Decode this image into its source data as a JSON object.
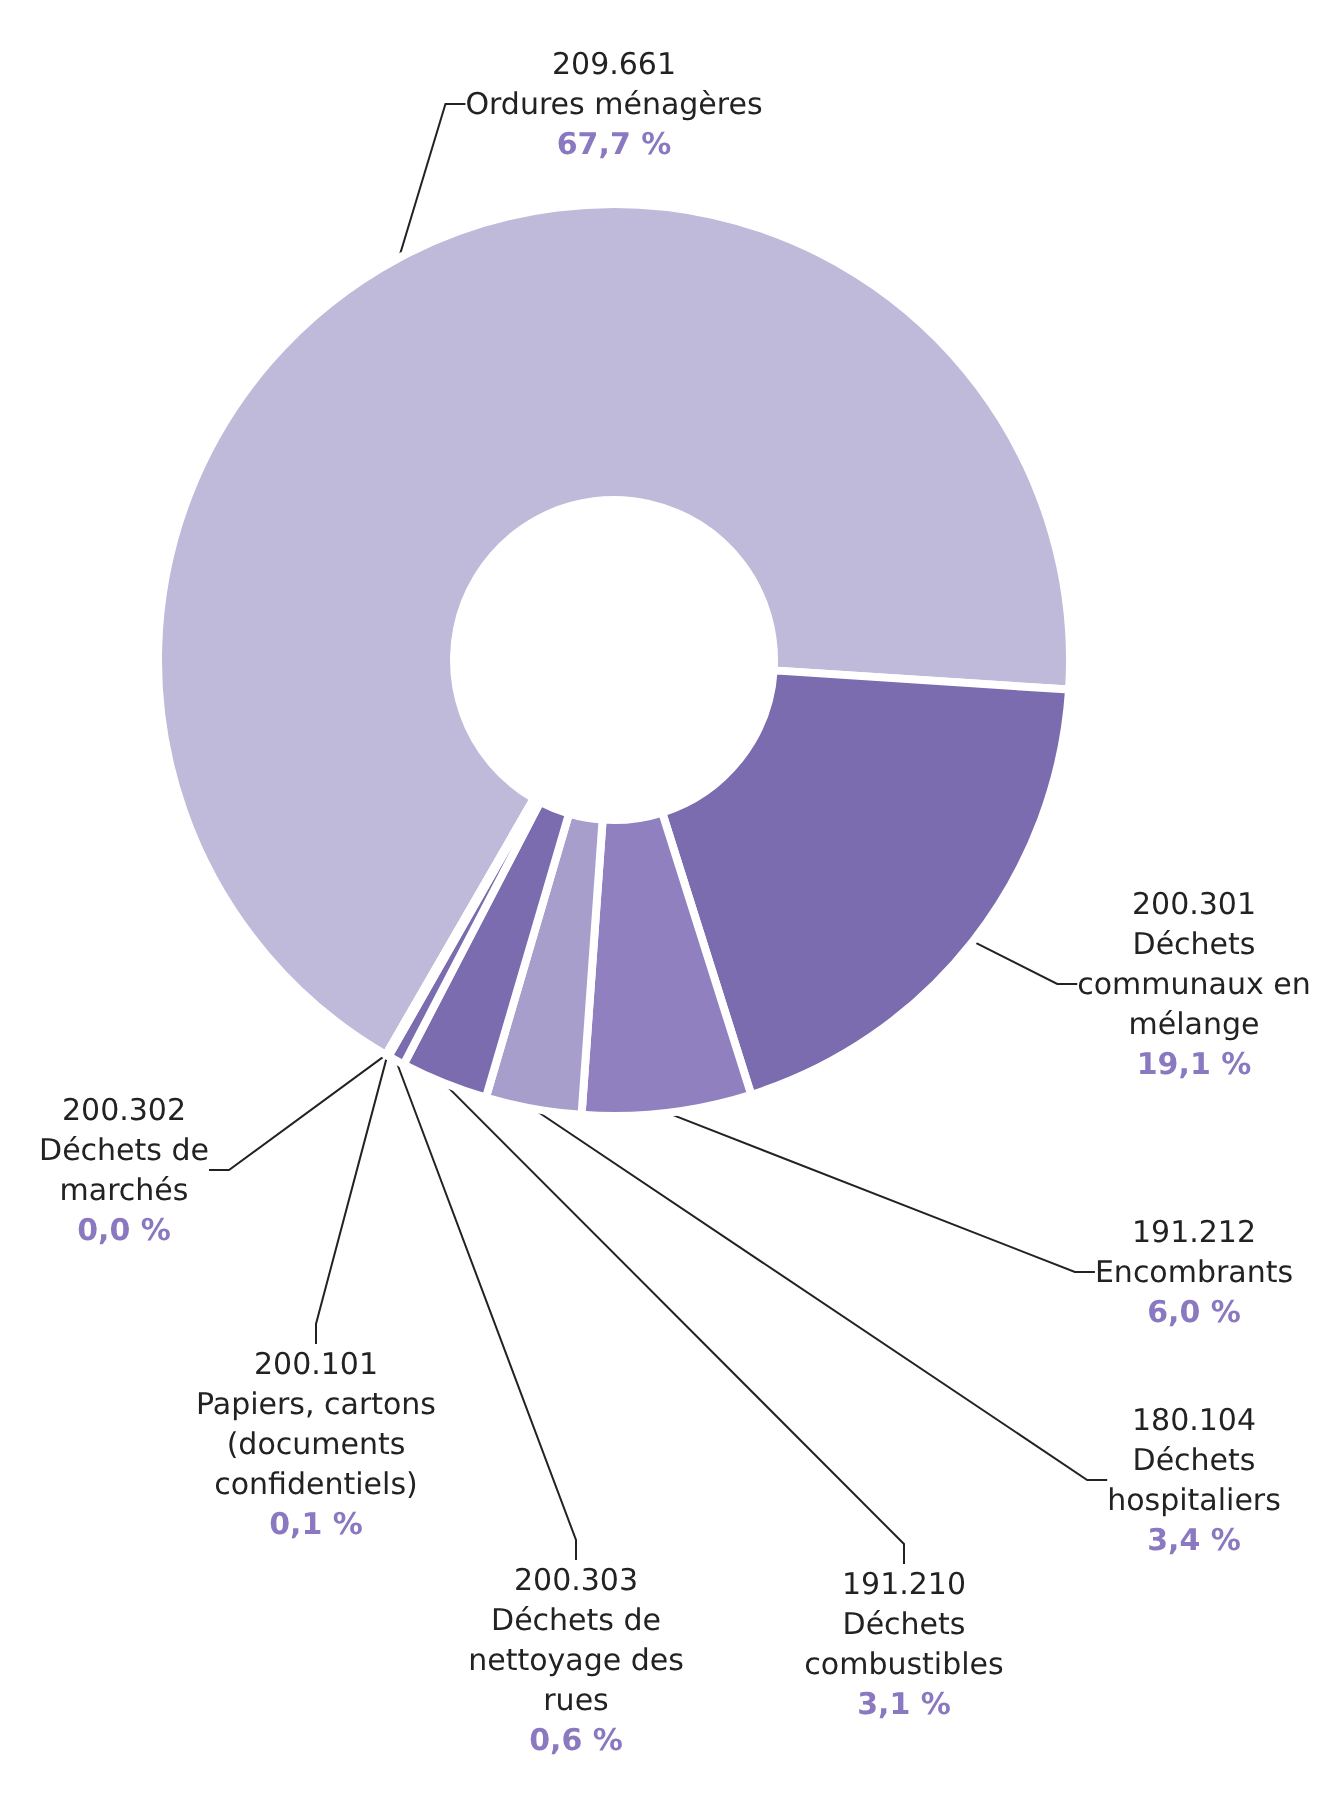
{
  "chart_data": {
    "type": "donut",
    "categories": [
      "209.661\nOrdures ménagères",
      "200.301\nDéchets communaux en mélange",
      "191.212\nEncombrants",
      "180.104\nDéchets hospitaliers",
      "191.210\nDéchets combustibles",
      "200.303\nDéchets de nettoyage des rues",
      "200.101\nPapiers, cartons (documents confidentiels)",
      "200.302\nDéchets de marchés"
    ],
    "values": [
      67.7,
      19.1,
      6.0,
      3.4,
      3.1,
      0.6,
      0.1,
      0.0
    ],
    "value_labels": [
      "67,7 %",
      "19,1 %",
      "6,0 %",
      "3,4 %",
      "3,1 %",
      "0,6 %",
      "0,1 %",
      "0,0 %"
    ],
    "colors": [
      "#bfb9da",
      "#7b6baf",
      "#9080bf",
      "#a89ecb",
      "#7b6baf",
      "#7b6baf",
      "#9080bf",
      "#bfb9da"
    ]
  }
}
